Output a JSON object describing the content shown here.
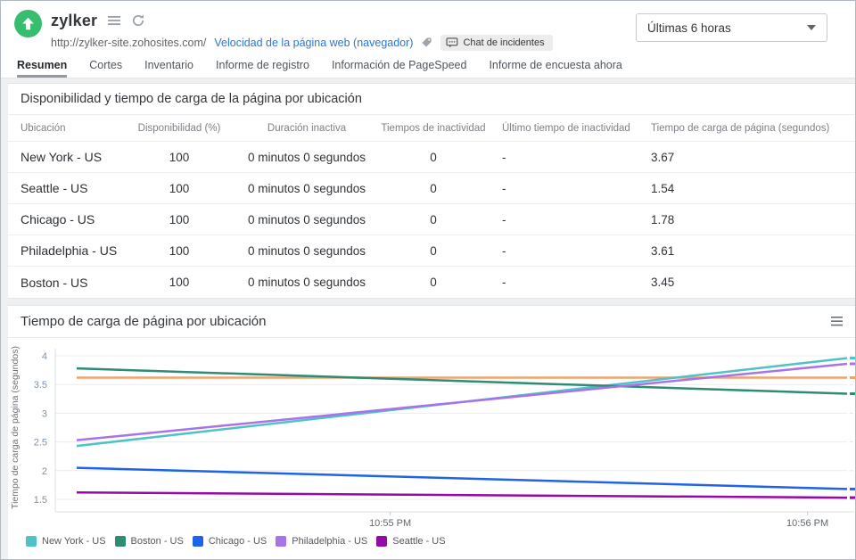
{
  "header": {
    "monitor_name": "zylker",
    "url": "http://zylker-site.zohosites.com/",
    "monitor_type_link": "Velocidad de la página web (navegador)",
    "incident_chip_label": "Chat de incidentes",
    "time_range_value": "Últimas 6 horas"
  },
  "tabs": [
    {
      "label": "Resumen",
      "active": true
    },
    {
      "label": "Cortes",
      "active": false
    },
    {
      "label": "Inventario",
      "active": false
    },
    {
      "label": "Informe de registro",
      "active": false
    },
    {
      "label": "Información de PageSpeed",
      "active": false
    },
    {
      "label": "Informe de encuesta ahora",
      "active": false
    }
  ],
  "availability_section": {
    "title": "Disponibilidad y tiempo de carga de la página por ubicación",
    "columns": [
      "Ubicación",
      "Disponibilidad (%)",
      "Duración inactiva",
      "Tiempos de inactividad",
      "Último tiempo de inactividad",
      "Tiempo de carga de página (segundos)"
    ],
    "rows": [
      {
        "location": "New York - US",
        "availability": "100",
        "downtime_duration": "0 minutos 0 segundos",
        "downtime_count": "0",
        "last_downtime": "-",
        "page_load_time": "3.67"
      },
      {
        "location": "Seattle - US",
        "availability": "100",
        "downtime_duration": "0 minutos 0 segundos",
        "downtime_count": "0",
        "last_downtime": "-",
        "page_load_time": "1.54"
      },
      {
        "location": "Chicago - US",
        "availability": "100",
        "downtime_duration": "0 minutos 0 segundos",
        "downtime_count": "0",
        "last_downtime": "-",
        "page_load_time": "1.78"
      },
      {
        "location": "Philadelphia - US",
        "availability": "100",
        "downtime_duration": "0 minutos 0 segundos",
        "downtime_count": "0",
        "last_downtime": "-",
        "page_load_time": "3.61"
      },
      {
        "location": "Boston - US",
        "availability": "100",
        "downtime_duration": "0 minutos 0 segundos",
        "downtime_count": "0",
        "last_downtime": "-",
        "page_load_time": "3.45"
      }
    ]
  },
  "chart_section": {
    "title": "Tiempo de carga de página por ubicación"
  },
  "chart_data": {
    "type": "line",
    "title": "Tiempo de carga de página por ubicación",
    "ylabel": "Tiempo de carga de página (segundos)",
    "xlabel": "",
    "ylim": [
      1.5,
      4
    ],
    "yticks": [
      1.5,
      2,
      2.5,
      3,
      3.5,
      4
    ],
    "grid": true,
    "legend_position": "bottom",
    "x_axis": {
      "ticks": [
        {
          "label": "10:55 PM",
          "pos": 0.423
        },
        {
          "label": "10:56 PM",
          "pos": 0.95
        }
      ]
    },
    "threshold_line": {
      "value": 3.62,
      "color": "#eda46f"
    },
    "series": [
      {
        "name": "New York - US",
        "color": "#4ec2c6",
        "points": [
          {
            "x": 0.027,
            "v": 2.43
          },
          {
            "x": 1,
            "v": 3.96
          }
        ]
      },
      {
        "name": "Boston - US",
        "color": "#2e8b74",
        "points": [
          {
            "x": 0.027,
            "v": 3.78
          },
          {
            "x": 1,
            "v": 3.34
          }
        ]
      },
      {
        "name": "Chicago - US",
        "color": "#1e63e8",
        "points": [
          {
            "x": 0.027,
            "v": 2.05
          },
          {
            "x": 1,
            "v": 1.68
          }
        ]
      },
      {
        "name": "Philadelphia - US",
        "color": "#a873e8",
        "points": [
          {
            "x": 0.027,
            "v": 2.53
          },
          {
            "x": 1,
            "v": 3.86
          }
        ]
      },
      {
        "name": "Seattle - US",
        "color": "#9609a8",
        "points": [
          {
            "x": 0.027,
            "v": 1.62
          },
          {
            "x": 1,
            "v": 1.53
          }
        ]
      }
    ]
  },
  "colors": {
    "brand_green": "#36bd6d",
    "link_blue": "#2678dd",
    "threshold_orange": "#eda46f"
  }
}
